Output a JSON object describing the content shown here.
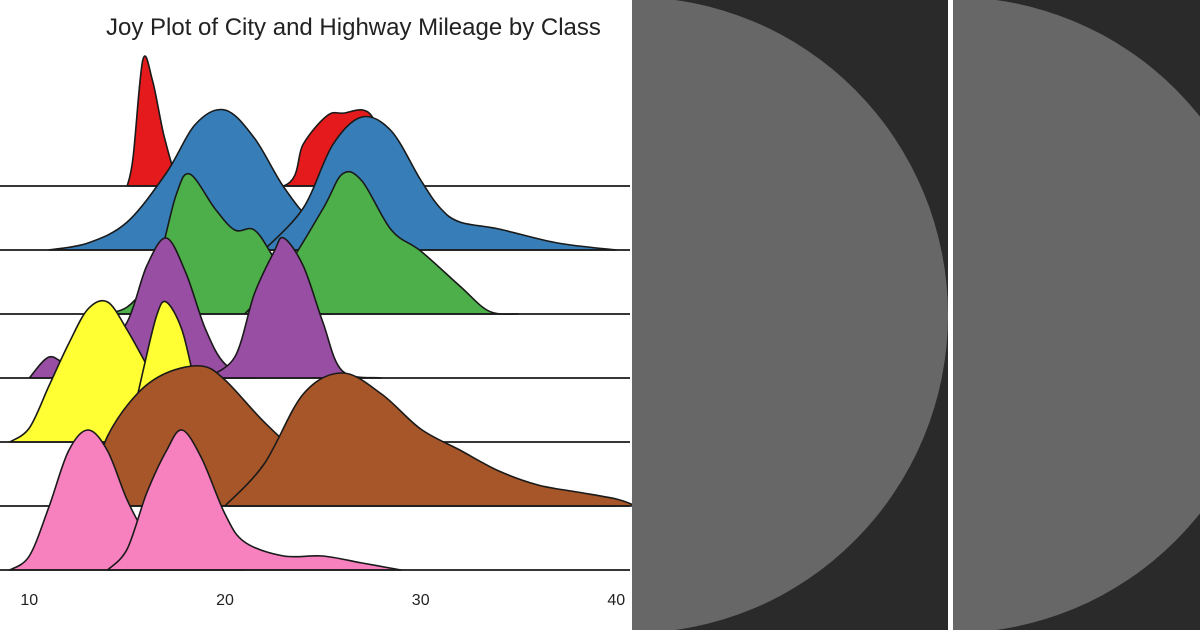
{
  "chart_data": {
    "type": "joyplot",
    "title": "Joy Plot of City and Highway Mileage by Class",
    "xlim": [
      8.5,
      40.7
    ],
    "xticks": [
      10,
      20,
      30,
      40
    ],
    "xlabel": "",
    "ylabel": "",
    "grid": false,
    "legend": "none",
    "series": [
      {
        "color": "#e41a1c",
        "fill_opacity": 1,
        "curves": [
          {
            "points": [
              [
                15,
                0
              ],
              [
                15.3,
                0.2
              ],
              [
                15.8,
                0.9
              ],
              [
                16.3,
                0.75
              ],
              [
                16.9,
                0.35
              ],
              [
                17.6,
                0.05
              ],
              [
                18.5,
                0
              ],
              [
                23,
                0
              ],
              [
                24,
                0.3
              ],
              [
                25.2,
                0.5
              ],
              [
                26,
                0.52
              ],
              [
                27.5,
                0.5
              ],
              [
                28.5,
                0
              ]
            ]
          }
        ]
      },
      {
        "color": "#377eb8",
        "fill_opacity": 1,
        "curves": [
          {
            "points": [
              [
                11,
                0
              ],
              [
                13,
                0.05
              ],
              [
                15,
                0.2
              ],
              [
                17,
                0.55
              ],
              [
                18.5,
                0.9
              ],
              [
                20,
                1.0
              ],
              [
                21.5,
                0.8
              ],
              [
                23,
                0.45
              ],
              [
                24.5,
                0.2
              ],
              [
                26.5,
                0.05
              ],
              [
                30,
                0
              ]
            ]
          },
          {
            "points": [
              [
                22,
                0
              ],
              [
                24,
                0.3
              ],
              [
                25.5,
                0.75
              ],
              [
                27,
                0.95
              ],
              [
                28.5,
                0.85
              ],
              [
                30,
                0.5
              ],
              [
                31,
                0.3
              ],
              [
                32,
                0.2
              ],
              [
                34,
                0.15
              ],
              [
                37,
                0.05
              ],
              [
                40,
                0
              ]
            ]
          }
        ]
      },
      {
        "color": "#4daf4a",
        "fill_opacity": 1,
        "curves": [
          {
            "points": [
              [
                13,
                0
              ],
              [
                15,
                0.05
              ],
              [
                16.5,
                0.35
              ],
              [
                17.5,
                0.85
              ],
              [
                18.2,
                1.0
              ],
              [
                19.5,
                0.75
              ],
              [
                20.5,
                0.6
              ],
              [
                21.5,
                0.6
              ],
              [
                22.5,
                0.4
              ],
              [
                24,
                0.05
              ],
              [
                25.5,
                0
              ]
            ]
          },
          {
            "points": [
              [
                21,
                0
              ],
              [
                23,
                0.3
              ],
              [
                25,
                0.75
              ],
              [
                26,
                1.0
              ],
              [
                27,
                0.95
              ],
              [
                28.5,
                0.6
              ],
              [
                30,
                0.45
              ],
              [
                32,
                0.2
              ],
              [
                33.5,
                0.02
              ],
              [
                35,
                0
              ]
            ]
          }
        ]
      },
      {
        "color": "#984ea3",
        "fill_opacity": 1,
        "curves": [
          {
            "points": [
              [
                10,
                0
              ],
              [
                11,
                0.15
              ],
              [
                12,
                0.1
              ],
              [
                13.5,
                0.15
              ],
              [
                15,
                0.4
              ],
              [
                16,
                0.8
              ],
              [
                17,
                1.0
              ],
              [
                18,
                0.75
              ],
              [
                19,
                0.35
              ],
              [
                20,
                0.1
              ],
              [
                21.5,
                0
              ]
            ]
          },
          {
            "points": [
              [
                19,
                0
              ],
              [
                20.5,
                0.15
              ],
              [
                21.5,
                0.6
              ],
              [
                22.5,
                0.9
              ],
              [
                23,
                1.0
              ],
              [
                24,
                0.8
              ],
              [
                25,
                0.4
              ],
              [
                26,
                0.05
              ],
              [
                28,
                0
              ]
            ]
          }
        ]
      },
      {
        "color": "#ffff33",
        "fill_opacity": 1,
        "curves": [
          {
            "points": [
              [
                9,
                0
              ],
              [
                10,
                0.1
              ],
              [
                11,
                0.4
              ],
              [
                12,
                0.7
              ],
              [
                13,
                0.95
              ],
              [
                14,
                1.0
              ],
              [
                15,
                0.8
              ],
              [
                16,
                0.55
              ],
              [
                17,
                0.3
              ],
              [
                18,
                0.15
              ],
              [
                19.5,
                0
              ]
            ]
          },
          {
            "points": [
              [
                15,
                0
              ],
              [
                15.8,
                0.5
              ],
              [
                16.5,
                0.9
              ],
              [
                17,
                1.0
              ],
              [
                17.8,
                0.8
              ],
              [
                18.5,
                0.4
              ],
              [
                19,
                0.15
              ],
              [
                20,
                0
              ]
            ]
          }
        ]
      },
      {
        "color": "#a65628",
        "fill_opacity": 1,
        "curves": [
          {
            "points": [
              [
                12,
                0
              ],
              [
                13,
                0.1
              ],
              [
                14,
                0.5
              ],
              [
                15.5,
                0.8
              ],
              [
                17,
                0.95
              ],
              [
                18.8,
                1.0
              ],
              [
                20,
                0.9
              ],
              [
                22,
                0.6
              ],
              [
                24,
                0.35
              ],
              [
                26,
                0.2
              ],
              [
                28,
                0.1
              ],
              [
                31,
                0.05
              ],
              [
                36,
                0.02
              ],
              [
                40,
                0
              ]
            ]
          },
          {
            "points": [
              [
                20,
                0
              ],
              [
                22,
                0.3
              ],
              [
                24,
                0.8
              ],
              [
                26,
                0.95
              ],
              [
                28,
                0.8
              ],
              [
                30,
                0.55
              ],
              [
                32,
                0.4
              ],
              [
                34,
                0.25
              ],
              [
                36,
                0.15
              ],
              [
                38,
                0.1
              ],
              [
                40,
                0.05
              ],
              [
                41,
                0
              ]
            ]
          }
        ]
      },
      {
        "color": "#f781bf",
        "fill_opacity": 1,
        "curves": [
          {
            "points": [
              [
                9,
                0
              ],
              [
                10,
                0.1
              ],
              [
                11,
                0.45
              ],
              [
                12,
                0.85
              ],
              [
                13,
                1.0
              ],
              [
                14,
                0.85
              ],
              [
                15,
                0.5
              ],
              [
                16,
                0.25
              ],
              [
                17,
                0.15
              ],
              [
                18,
                0.1
              ],
              [
                19,
                0.05
              ],
              [
                20,
                0.02
              ],
              [
                21,
                0
              ]
            ]
          },
          {
            "points": [
              [
                14,
                0
              ],
              [
                15,
                0.15
              ],
              [
                16,
                0.55
              ],
              [
                17,
                0.85
              ],
              [
                17.8,
                1.0
              ],
              [
                18.8,
                0.8
              ],
              [
                20,
                0.4
              ],
              [
                21,
                0.2
              ],
              [
                23,
                0.1
              ],
              [
                25,
                0.1
              ],
              [
                27,
                0.05
              ],
              [
                29,
                0
              ]
            ]
          }
        ]
      }
    ]
  }
}
